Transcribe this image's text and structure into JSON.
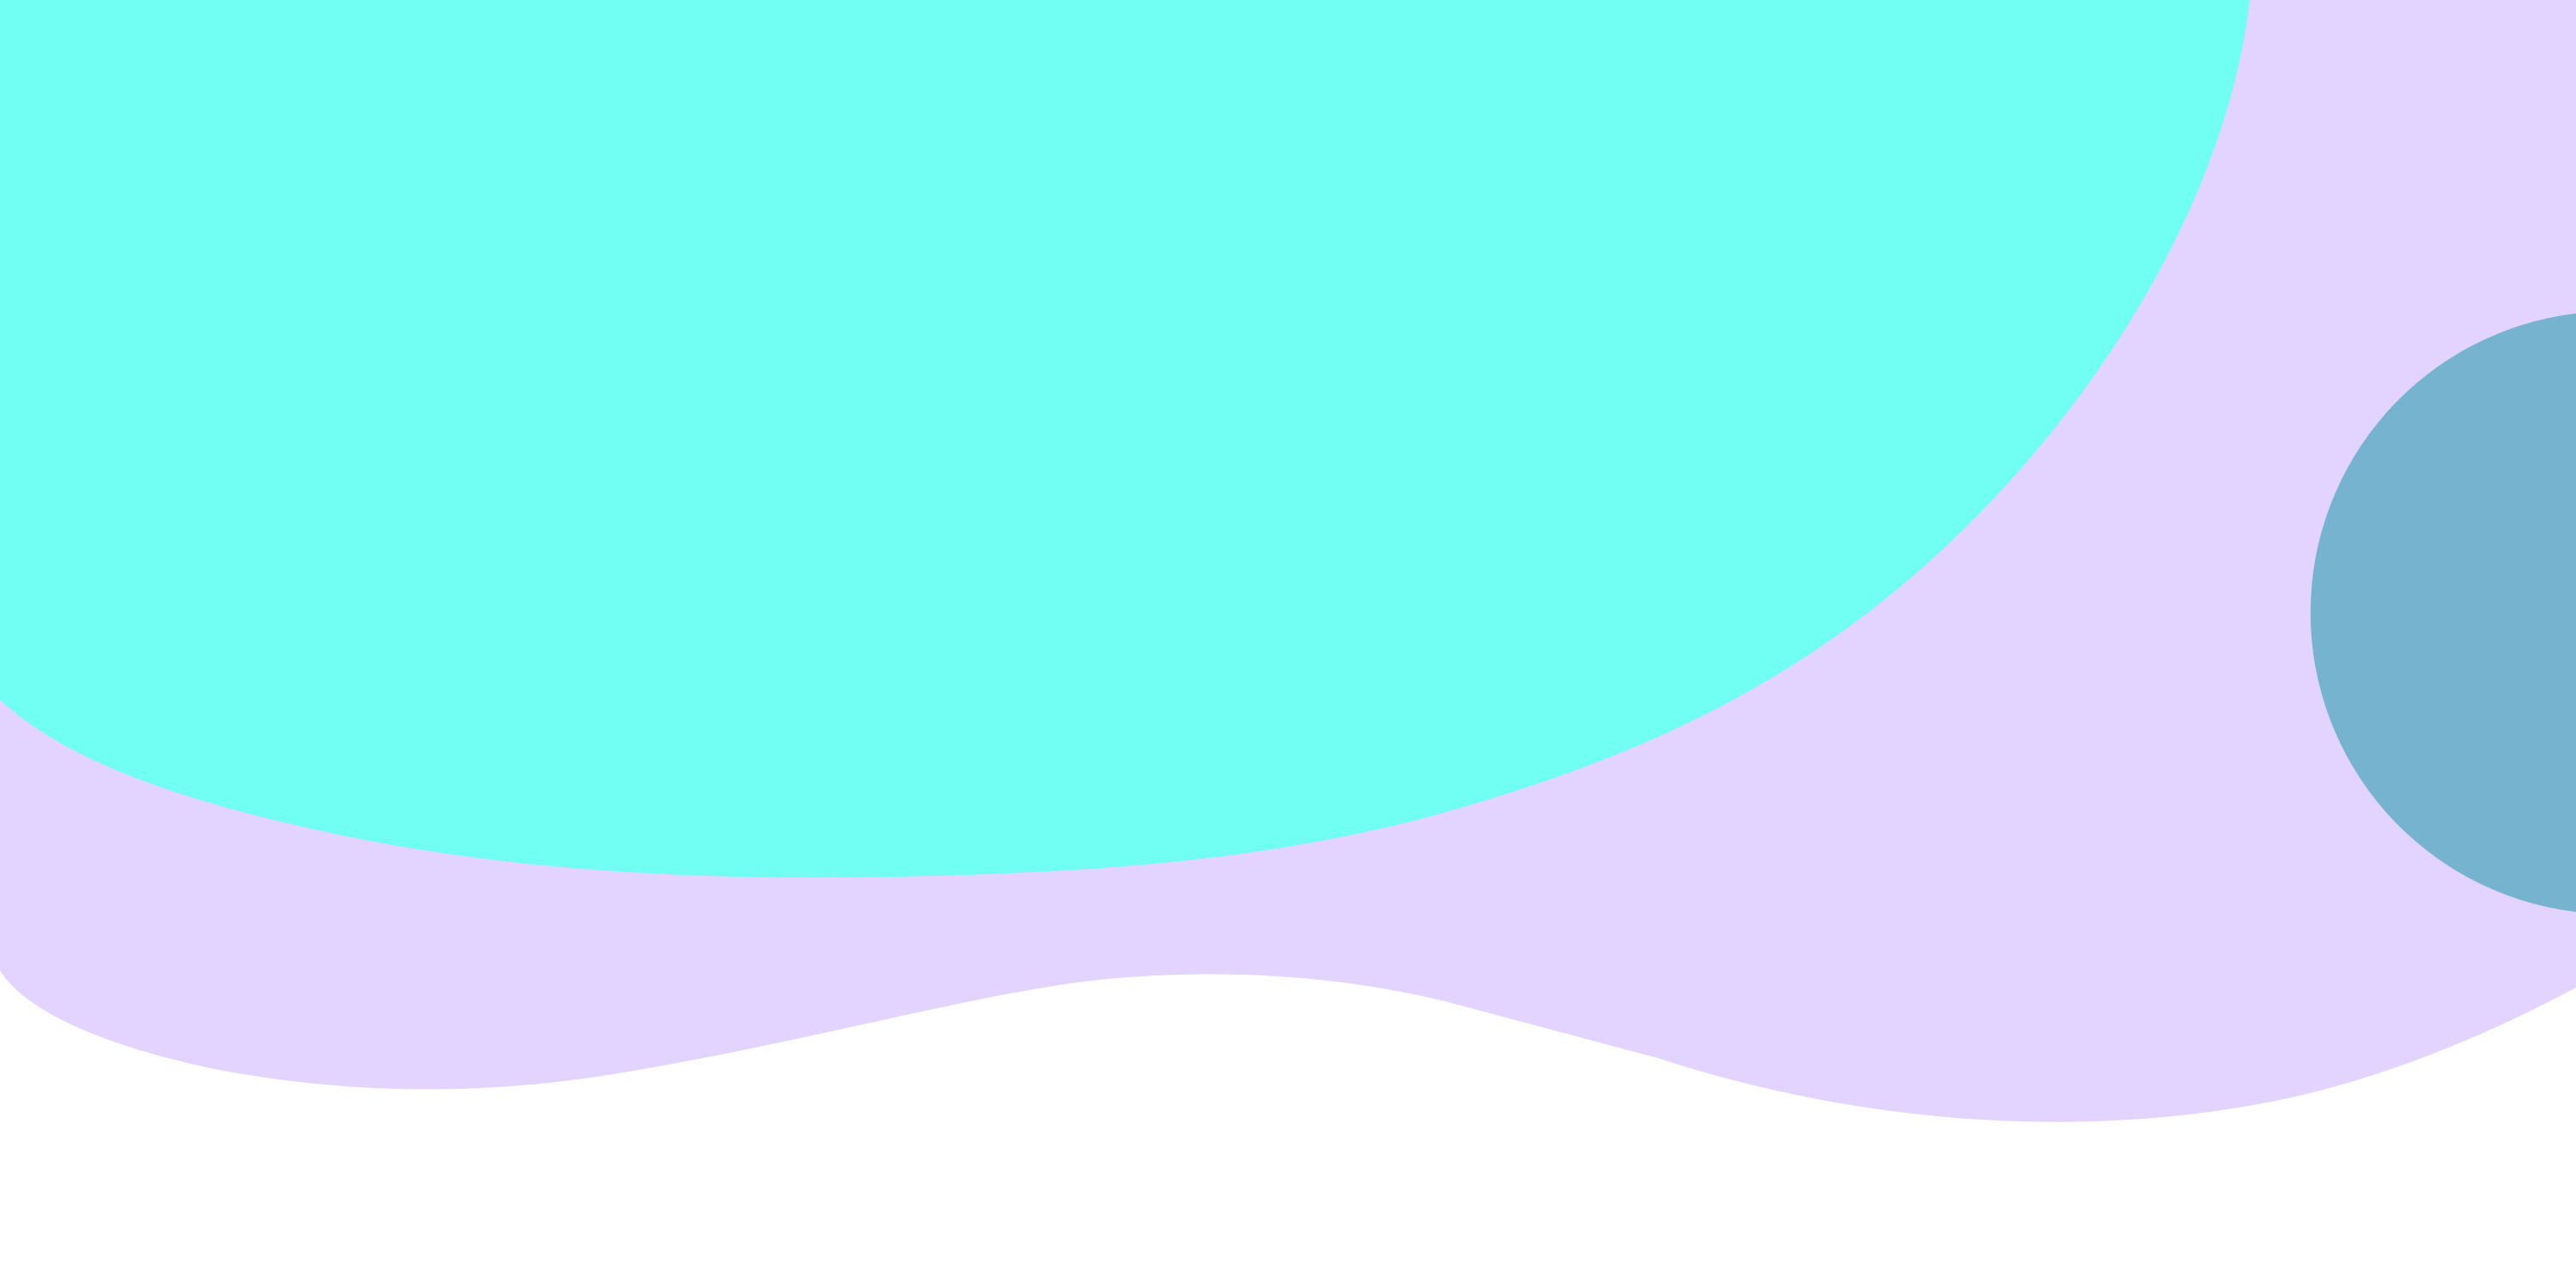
{
  "colors": {
    "background": "#ffffff",
    "lavender_blob": "#e3d3ff",
    "cyan_blob": "#70fff2",
    "teal_circle": "#76b3cf"
  },
  "shapes": {
    "background": "white",
    "lavender_blob": "wavy-lavender-blob",
    "cyan_blob": "large-cyan-blob",
    "teal_circle": "partial-teal-circle"
  }
}
